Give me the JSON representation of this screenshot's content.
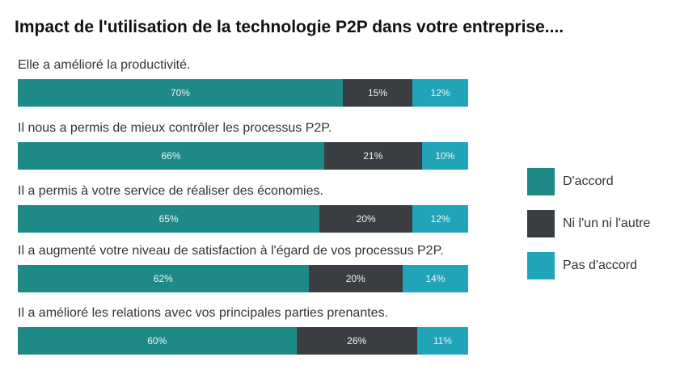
{
  "chart_data": {
    "type": "bar",
    "orientation": "horizontal",
    "stacked": true,
    "title": "Impact de l'utilisation de la technologie P2P dans votre entreprise....",
    "categories": [
      "Elle a amélioré la productivité.",
      "Il nous a permis de mieux contrôler les processus P2P.",
      "Il a permis à votre service de réaliser des économies.",
      "Il a augmenté votre niveau de satisfaction à l'égard de vos processus P2P.",
      "Il a amélioré les relations avec vos principales parties prenantes."
    ],
    "series": [
      {
        "name": "D'accord",
        "color": "#1e8a88",
        "values": [
          70,
          66,
          65,
          62,
          60
        ],
        "labels": [
          "70%",
          "66%",
          "65%",
          "62%",
          "60%"
        ]
      },
      {
        "name": "Ni l'un ni l'autre",
        "color": "#3a3d42",
        "values": [
          15,
          21,
          20,
          20,
          26
        ],
        "labels": [
          "15%",
          "21%",
          "20%",
          "20%",
          "26%"
        ]
      },
      {
        "name": "Pas d'accord",
        "color": "#21a4b8",
        "values": [
          12,
          10,
          12,
          14,
          11
        ],
        "labels": [
          "12%",
          "10%",
          "12%",
          "14%",
          "11%"
        ]
      }
    ],
    "legend_position": "right",
    "grid": false
  }
}
